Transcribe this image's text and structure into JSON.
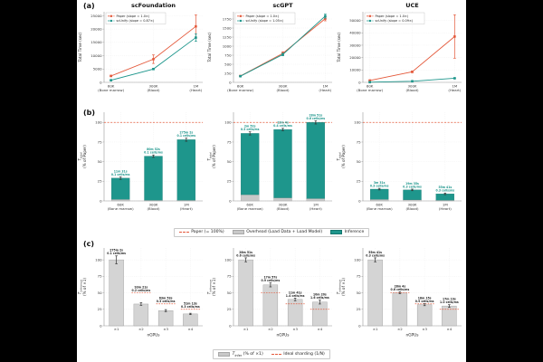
{
  "panels": {
    "a": "(a)",
    "b": "(b)",
    "c": "(c)"
  },
  "colors": {
    "paper": "#E4593B",
    "scunify": "#1E968C",
    "overhead": "#C8C8C8",
    "bar_gray": "#D4D4D4",
    "bar_gray_border": "#999999",
    "teal_border": "#14766e",
    "grid": "#E2E2E2",
    "axis": "#9A9A9A",
    "tick_text": "#333333",
    "label_dark": "#222222"
  },
  "chart_data": [
    {
      "panel": "a",
      "type": "line",
      "title": "scFoundation",
      "ylabel": "Total Time (sec)",
      "categories": [
        "60K|(Bone marrow)",
        "300K|(Blood)",
        "1M|(Heart)"
      ],
      "ylim": [
        0,
        26500
      ],
      "yticks": [
        0,
        5000,
        10000,
        15000,
        20000,
        25000
      ],
      "series": [
        {
          "name": "Paper (slope = 1.0×)",
          "color": "paper",
          "values": [
            2400,
            8700,
            21000
          ],
          "errors": [
            250,
            1600,
            4300
          ]
        },
        {
          "name": "scUnify (slope = 0.87×)",
          "color": "scunify",
          "values": [
            800,
            5000,
            16800
          ],
          "errors": [
            80,
            250,
            1400
          ]
        }
      ]
    },
    {
      "panel": "a",
      "type": "line",
      "title": "scGPT",
      "ylabel": "Total Time (sec)",
      "categories": [
        "60K|(Bone marrow)",
        "300K|(Blood)",
        "1M|(Heart)"
      ],
      "ylim": [
        0,
        1950
      ],
      "yticks": [
        0,
        250,
        500,
        750,
        1000,
        1250,
        1500,
        1750
      ],
      "series": [
        {
          "name": "Paper (slope = 1.0×)",
          "color": "paper",
          "values": [
            175,
            800,
            1760
          ],
          "errors": [
            12,
            45,
            60
          ]
        },
        {
          "name": "scUnify (slope = 1.05×)",
          "color": "scunify",
          "values": [
            170,
            770,
            1830
          ],
          "errors": [
            10,
            35,
            55
          ]
        }
      ]
    },
    {
      "panel": "a",
      "type": "line",
      "title": "UCE",
      "ylabel": "Total Time (sec)",
      "categories": [
        "60K|(Bone marrow)",
        "300K|(Blood)",
        "1M|(Heart)"
      ],
      "ylim": [
        0,
        57000
      ],
      "yticks": [
        0,
        10000,
        20000,
        30000,
        40000,
        50000
      ],
      "series": [
        {
          "name": "Paper (slope = 1.0×)",
          "color": "paper",
          "values": [
            1500,
            8500,
            37000
          ],
          "errors": [
            250,
            700,
            17500
          ]
        },
        {
          "name": "scUnify (slope = 0.09×)",
          "color": "scunify",
          "values": [
            150,
            900,
            3300
          ],
          "errors": [
            60,
            120,
            350
          ]
        }
      ]
    },
    {
      "panel": "b",
      "type": "stacked-bar",
      "title": "scFoundation",
      "ylabel_lines": [
        "T_total",
        "(% of Paper)"
      ],
      "categories": [
        "60K|(Bone marrow)",
        "300K|(Blood)",
        "1M|(Heart)"
      ],
      "ylim": [
        0,
        113
      ],
      "yticks": [
        0,
        25,
        50,
        75,
        100
      ],
      "ref_line": 100,
      "values": [
        29,
        57,
        78
      ],
      "overhead": [
        2,
        1,
        1
      ],
      "errors": [
        1.5,
        1.5,
        2
      ],
      "bar_labels": [
        [
          "11m 31s",
          "0.1 cells/ms"
        ],
        [
          "80m 52s",
          "0.1 cells/ms"
        ],
        [
          "275m 2s",
          "0.1 cells/ms"
        ]
      ]
    },
    {
      "panel": "b",
      "type": "stacked-bar",
      "title": "scGPT",
      "ylabel_lines": [
        "T_total",
        "(% of Paper)"
      ],
      "categories": [
        "60K|(Bone marrow)",
        "300K|(Blood)",
        "1M|(Heart)"
      ],
      "ylim": [
        0,
        113
      ],
      "yticks": [
        0,
        25,
        50,
        75,
        100
      ],
      "ref_line": 100,
      "values": [
        86,
        91,
        100
      ],
      "overhead": [
        8,
        4,
        3
      ],
      "errors": [
        2,
        1.5,
        2
      ],
      "bar_labels": [
        [
          "2m 52s",
          "0.3 cells/ms"
        ],
        [
          "13m 4s",
          "0.4 cells/ms"
        ],
        [
          "28m 51s",
          "0.6 cells/ms"
        ]
      ]
    },
    {
      "panel": "b",
      "type": "stacked-bar",
      "title": "UCE",
      "ylabel_lines": [
        "T_total",
        "(% of Paper)"
      ],
      "categories": [
        "60K|(Bone marrow)",
        "300K|(Blood)",
        "1M|(Heart)"
      ],
      "ylim": [
        0,
        113
      ],
      "yticks": [
        0,
        25,
        50,
        75,
        100
      ],
      "ref_line": 100,
      "values": [
        15,
        14,
        9
      ],
      "overhead": [
        2,
        1.5,
        1
      ],
      "errors": [
        1,
        1,
        1
      ],
      "bar_labels": [
        [
          "3m 31s",
          "0.3 cells/ms"
        ],
        [
          "19m 35s",
          "0.3 cells/ms"
        ],
        [
          "55m 41s",
          "0.3 cells/ms"
        ]
      ]
    },
    {
      "panel": "c",
      "type": "gpu-bar",
      "title": "scFoundation",
      "ylabel_lines": [
        "T_inference",
        "(% of ×1)"
      ],
      "xlabel": "nGPUs",
      "categories": [
        "×1",
        "×2",
        "×3",
        "×4"
      ],
      "ylim": [
        0,
        118
      ],
      "yticks": [
        0,
        25,
        50,
        75,
        100
      ],
      "ideal": [
        null,
        50,
        33.3,
        25
      ],
      "values": [
        100,
        33,
        23,
        18
      ],
      "errors": [
        6,
        2,
        1.5,
        1
      ],
      "bar_labels": [
        [
          "275m 2s",
          "0.1 cells/ms"
        ],
        [
          "93m 21s",
          "0.2 cells/ms"
        ],
        [
          "63m 53s",
          "0.3 cells/ms"
        ],
        [
          "51m 13s",
          "0.3 cells/ms"
        ]
      ]
    },
    {
      "panel": "c",
      "type": "gpu-bar",
      "title": "scGPT",
      "ylabel_lines": [
        "T_inference",
        "(% of ×1)"
      ],
      "xlabel": "nGPUs",
      "categories": [
        "×1",
        "×2",
        "×3",
        "×4"
      ],
      "ylim": [
        0,
        118
      ],
      "yticks": [
        0,
        25,
        50,
        75,
        100
      ],
      "ideal": [
        null,
        50,
        33.3,
        25
      ],
      "values": [
        100,
        62,
        40,
        36
      ],
      "errors": [
        3,
        3,
        2,
        3
      ],
      "bar_labels": [
        [
          "28m 51s",
          "0.6 cells/ms"
        ],
        [
          "17m 57s",
          "0.9 cells/ms"
        ],
        [
          "11m 41s",
          "1.4 cells/ms"
        ],
        [
          "10m 20s",
          "1.6 cells/ms"
        ]
      ]
    },
    {
      "panel": "c",
      "type": "gpu-bar",
      "title": "UCE",
      "ylabel_lines": [
        "T_inference",
        "(% of ×1)"
      ],
      "xlabel": "nGPUs",
      "categories": [
        "×1",
        "×2",
        "×3",
        "×4"
      ],
      "ylim": [
        0,
        118
      ],
      "yticks": [
        0,
        25,
        50,
        75,
        100
      ],
      "ideal": [
        null,
        50,
        33.3,
        25
      ],
      "values": [
        100,
        50,
        32,
        30
      ],
      "errors": [
        3,
        1.5,
        1.5,
        2
      ],
      "bar_labels": [
        [
          "55m 41s",
          "0.3 cells/ms"
        ],
        [
          "28m 4s",
          "0.6 cells/ms"
        ],
        [
          "18m 15s",
          "0.9 cells/ms"
        ],
        [
          "17m 19s",
          "1.0 cells/ms"
        ]
      ]
    }
  ],
  "legend_b": {
    "items": [
      {
        "label": "Paper (= 100%)",
        "swatch": "dashed-red"
      },
      {
        "label": "Overhead (Load Data + Load Model)",
        "swatch": "gray"
      },
      {
        "label": "Inference",
        "swatch": "teal"
      }
    ]
  },
  "legend_c": {
    "items": [
      {
        "label": "T_infer (% of ×1)",
        "swatch": "gray"
      },
      {
        "label": "Ideal sharding (1/N)",
        "swatch": "dashed-red"
      }
    ]
  }
}
